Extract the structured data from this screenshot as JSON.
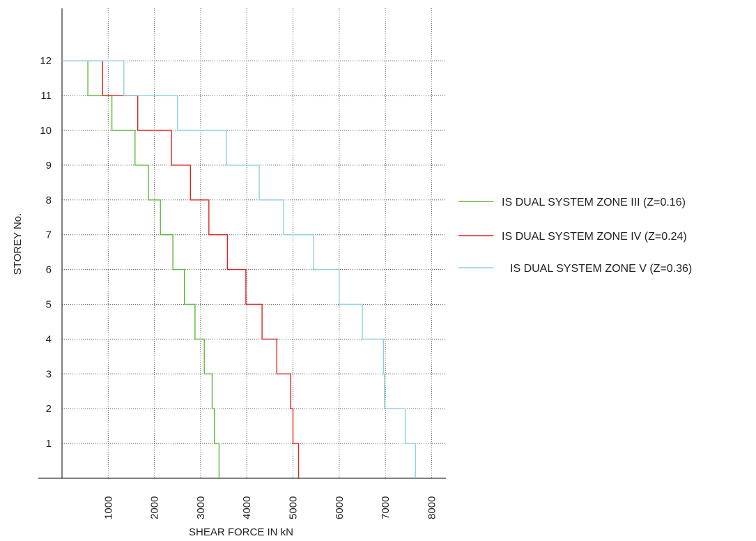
{
  "chart_data": {
    "type": "line",
    "xlabel": "SHEAR FORCE IN kN",
    "ylabel": "STOREY No.",
    "xlim": [
      0,
      8000
    ],
    "ylim": [
      0,
      12
    ],
    "x_ticks": [
      "1000",
      "2000",
      "3000",
      "4000",
      "5000",
      "6000",
      "7000",
      "8000"
    ],
    "y_ticks": [
      "1",
      "2",
      "3",
      "4",
      "5",
      "6",
      "7",
      "8",
      "9",
      "10",
      "11",
      "12"
    ],
    "grid": true,
    "legend_position": "right",
    "step_style": "storey shear step plot",
    "series": [
      {
        "name": "IS DUAL SYSTEM ZONE III (Z=0.16)",
        "color": "#5cb83c",
        "shear_per_storey": [
          3400,
          3300,
          3250,
          3080,
          2880,
          2650,
          2400,
          2130,
          1870,
          1580,
          1080,
          560,
          270
        ]
      },
      {
        "name": "IS DUAL SYSTEM ZONE IV (Z=0.24)",
        "color": "#e02424",
        "shear_per_storey": [
          5120,
          5000,
          4950,
          4650,
          4330,
          3980,
          3580,
          3180,
          2780,
          2370,
          1640,
          880,
          400
        ]
      },
      {
        "name": "IS DUAL SYSTEM ZONE V (Z=0.36)",
        "color": "#8ed0dc",
        "shear_per_storey": [
          7650,
          7430,
          6980,
          6960,
          6500,
          6000,
          5450,
          4800,
          4270,
          3560,
          2500,
          1340,
          620
        ]
      }
    ]
  }
}
